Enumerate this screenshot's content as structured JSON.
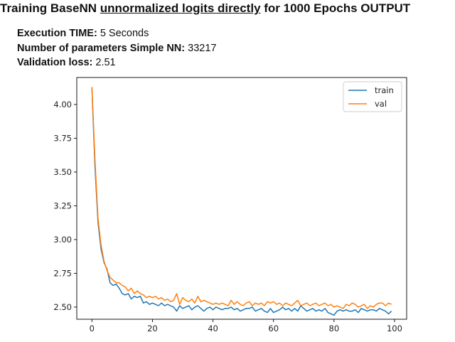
{
  "header": {
    "title_prefix": "Training BaseNN ",
    "title_underlined": "unnormalized logits directly",
    "title_suffix": " for 1000 Epochs OUTPUT"
  },
  "info": {
    "exec_label": "Execution TIME:",
    "exec_value": "5 Seconds",
    "params_label": "Number of parameters Simple NN:",
    "params_value": "33217",
    "val_label": "Validation loss:",
    "val_value": "2.51"
  },
  "chart_data": {
    "type": "line",
    "x": [
      0,
      1,
      2,
      3,
      4,
      5,
      6,
      7,
      8,
      9,
      10,
      11,
      12,
      13,
      14,
      15,
      16,
      17,
      18,
      19,
      20,
      21,
      22,
      23,
      24,
      25,
      26,
      27,
      28,
      29,
      30,
      31,
      32,
      33,
      34,
      35,
      36,
      37,
      38,
      39,
      40,
      41,
      42,
      43,
      44,
      45,
      46,
      47,
      48,
      49,
      50,
      51,
      52,
      53,
      54,
      55,
      56,
      57,
      58,
      59,
      60,
      61,
      62,
      63,
      64,
      65,
      66,
      67,
      68,
      69,
      70,
      71,
      72,
      73,
      74,
      75,
      76,
      77,
      78,
      79,
      80,
      81,
      82,
      83,
      84,
      85,
      86,
      87,
      88,
      89,
      90,
      91,
      92,
      93,
      94,
      95,
      96,
      97,
      98,
      99
    ],
    "series": [
      {
        "name": "train",
        "color": "#1f77b4",
        "values": [
          4.12,
          3.55,
          3.13,
          2.93,
          2.83,
          2.78,
          2.68,
          2.66,
          2.67,
          2.64,
          2.6,
          2.59,
          2.6,
          2.56,
          2.58,
          2.57,
          2.58,
          2.53,
          2.54,
          2.52,
          2.53,
          2.52,
          2.51,
          2.53,
          2.51,
          2.52,
          2.51,
          2.5,
          2.47,
          2.51,
          2.49,
          2.5,
          2.51,
          2.48,
          2.5,
          2.51,
          2.49,
          2.47,
          2.49,
          2.5,
          2.48,
          2.5,
          2.49,
          2.48,
          2.49,
          2.49,
          2.5,
          2.48,
          2.49,
          2.47,
          2.48,
          2.49,
          2.49,
          2.5,
          2.47,
          2.48,
          2.49,
          2.47,
          2.46,
          2.49,
          2.46,
          2.47,
          2.48,
          2.5,
          2.48,
          2.49,
          2.47,
          2.49,
          2.47,
          2.51,
          2.49,
          2.47,
          2.48,
          2.49,
          2.47,
          2.48,
          2.47,
          2.49,
          2.46,
          2.45,
          2.44,
          2.47,
          2.48,
          2.47,
          2.48,
          2.47,
          2.47,
          2.48,
          2.46,
          2.49,
          2.48,
          2.47,
          2.48,
          2.48,
          2.47,
          2.49,
          2.48,
          2.47,
          2.45,
          2.47
        ]
      },
      {
        "name": "val",
        "color": "#ff7f0e",
        "values": [
          4.13,
          3.6,
          3.16,
          2.96,
          2.84,
          2.77,
          2.72,
          2.7,
          2.68,
          2.68,
          2.66,
          2.65,
          2.62,
          2.64,
          2.6,
          2.62,
          2.6,
          2.59,
          2.57,
          2.58,
          2.57,
          2.58,
          2.56,
          2.57,
          2.55,
          2.56,
          2.54,
          2.55,
          2.6,
          2.52,
          2.57,
          2.55,
          2.54,
          2.56,
          2.53,
          2.58,
          2.54,
          2.55,
          2.54,
          2.53,
          2.52,
          2.53,
          2.52,
          2.53,
          2.52,
          2.51,
          2.55,
          2.52,
          2.54,
          2.52,
          2.51,
          2.53,
          2.54,
          2.51,
          2.53,
          2.52,
          2.53,
          2.51,
          2.54,
          2.53,
          2.54,
          2.52,
          2.53,
          2.51,
          2.53,
          2.52,
          2.51,
          2.53,
          2.55,
          2.51,
          2.52,
          2.53,
          2.51,
          2.52,
          2.53,
          2.51,
          2.52,
          2.53,
          2.51,
          2.52,
          2.5,
          2.51,
          2.5,
          2.49,
          2.52,
          2.51,
          2.53,
          2.52,
          2.5,
          2.51,
          2.52,
          2.49,
          2.51,
          2.5,
          2.52,
          2.53,
          2.53,
          2.51,
          2.53,
          2.52
        ]
      }
    ],
    "xlim": [
      -5,
      104
    ],
    "ylim": [
      2.41,
      4.2
    ],
    "xticks": [
      0,
      20,
      40,
      60,
      80,
      100
    ],
    "yticks": [
      2.5,
      2.75,
      3.0,
      3.25,
      3.5,
      3.75,
      4.0
    ],
    "xtick_labels": [
      "0",
      "20",
      "40",
      "60",
      "80",
      "100"
    ],
    "ytick_labels": [
      "2.50",
      "2.75",
      "3.00",
      "3.25",
      "3.50",
      "3.75",
      "4.00"
    ],
    "legend_position": "top-right",
    "grid": false
  }
}
